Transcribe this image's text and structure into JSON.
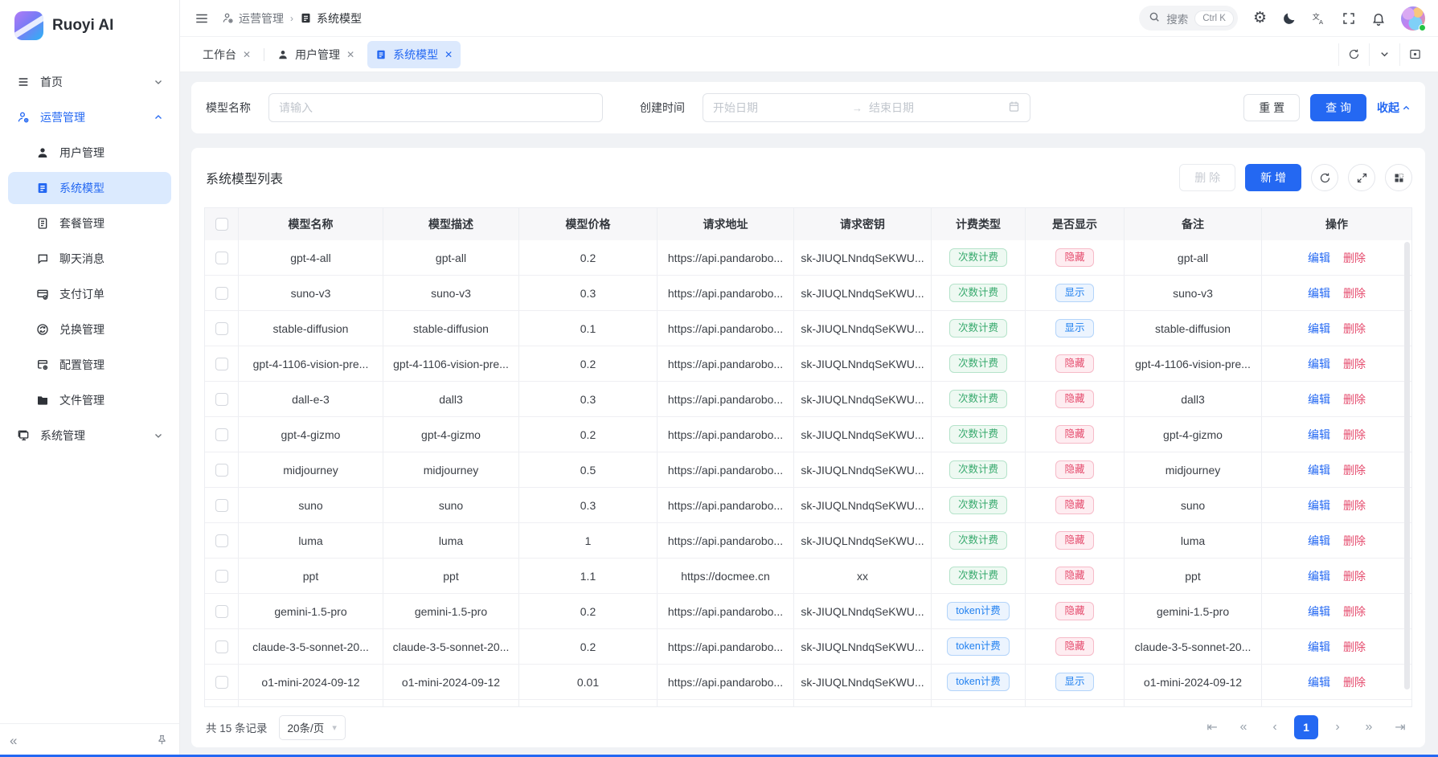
{
  "colors": {
    "primary": "#2468f2",
    "success": "#36a96c",
    "error": "#e54c6e",
    "info": "#2080f0"
  },
  "brand": {
    "name": "Ruoyi AI"
  },
  "sidebar": {
    "items": [
      {
        "id": "home",
        "label": "首页",
        "type": "top",
        "icon": "menu-lines-icon",
        "chevron": "down"
      },
      {
        "id": "operations",
        "label": "运营管理",
        "type": "top",
        "icon": "operations-icon",
        "chevron": "up",
        "active": true
      },
      {
        "id": "users",
        "label": "用户管理",
        "type": "sub",
        "icon": "user-icon"
      },
      {
        "id": "models",
        "label": "系统模型",
        "type": "sub",
        "icon": "model-icon",
        "selected": true
      },
      {
        "id": "packages",
        "label": "套餐管理",
        "type": "sub",
        "icon": "package-icon"
      },
      {
        "id": "chat",
        "label": "聊天消息",
        "type": "sub",
        "icon": "chat-icon"
      },
      {
        "id": "payment",
        "label": "支付订单",
        "type": "sub",
        "icon": "payment-icon"
      },
      {
        "id": "redeem",
        "label": "兑换管理",
        "type": "sub",
        "icon": "redeem-icon"
      },
      {
        "id": "config",
        "label": "配置管理",
        "type": "sub",
        "icon": "config-icon"
      },
      {
        "id": "files",
        "label": "文件管理",
        "type": "sub",
        "icon": "folder-icon"
      },
      {
        "id": "system",
        "label": "系统管理",
        "type": "top",
        "icon": "system-icon",
        "chevron": "down"
      }
    ]
  },
  "header": {
    "breadcrumb": {
      "parent": "运营管理",
      "current": "系统模型"
    },
    "search": {
      "placeholder": "搜索",
      "shortcut": "Ctrl K"
    }
  },
  "tabs": [
    {
      "id": "workbench",
      "label": "工作台",
      "closable": true
    },
    {
      "id": "users",
      "label": "用户管理",
      "icon": "user-icon",
      "closable": true
    },
    {
      "id": "models",
      "label": "系统模型",
      "icon": "model-icon",
      "closable": true,
      "active": true
    }
  ],
  "filter": {
    "model_name_label": "模型名称",
    "model_name_placeholder": "请输入",
    "create_time_label": "创建时间",
    "date_start_placeholder": "开始日期",
    "date_end_placeholder": "结束日期",
    "reset_label": "重 置",
    "search_label": "查 询",
    "collapse_label": "收起"
  },
  "table_card": {
    "title": "系统模型列表",
    "delete_label": "删 除",
    "add_label": "新 增"
  },
  "table": {
    "columns": [
      "模型名称",
      "模型描述",
      "模型价格",
      "请求地址",
      "请求密钥",
      "计费类型",
      "是否显示",
      "备注",
      "操作"
    ],
    "action_labels": {
      "edit": "编辑",
      "delete": "删除"
    },
    "rows": [
      {
        "name": "gpt-4-all",
        "desc": "gpt-all",
        "price": "0.2",
        "url": "https://api.pandarobo...",
        "key": "sk-JIUQLNndqSeKWU...",
        "billing": "次数计费",
        "billing_type": "count",
        "visible": "隐藏",
        "visible_type": "hidden",
        "remark": "gpt-all"
      },
      {
        "name": "suno-v3",
        "desc": "suno-v3",
        "price": "0.3",
        "url": "https://api.pandarobo...",
        "key": "sk-JIUQLNndqSeKWU...",
        "billing": "次数计费",
        "billing_type": "count",
        "visible": "显示",
        "visible_type": "shown",
        "remark": "suno-v3"
      },
      {
        "name": "stable-diffusion",
        "desc": "stable-diffusion",
        "price": "0.1",
        "url": "https://api.pandarobo...",
        "key": "sk-JIUQLNndqSeKWU...",
        "billing": "次数计费",
        "billing_type": "count",
        "visible": "显示",
        "visible_type": "shown",
        "remark": "stable-diffusion"
      },
      {
        "name": "gpt-4-1106-vision-pre...",
        "desc": "gpt-4-1106-vision-pre...",
        "price": "0.2",
        "url": "https://api.pandarobo...",
        "key": "sk-JIUQLNndqSeKWU...",
        "billing": "次数计费",
        "billing_type": "count",
        "visible": "隐藏",
        "visible_type": "hidden",
        "remark": "gpt-4-1106-vision-pre..."
      },
      {
        "name": "dall-e-3",
        "desc": "dall3",
        "price": "0.3",
        "url": "https://api.pandarobo...",
        "key": "sk-JIUQLNndqSeKWU...",
        "billing": "次数计费",
        "billing_type": "count",
        "visible": "隐藏",
        "visible_type": "hidden",
        "remark": "dall3"
      },
      {
        "name": "gpt-4-gizmo",
        "desc": "gpt-4-gizmo",
        "price": "0.2",
        "url": "https://api.pandarobo...",
        "key": "sk-JIUQLNndqSeKWU...",
        "billing": "次数计费",
        "billing_type": "count",
        "visible": "隐藏",
        "visible_type": "hidden",
        "remark": "gpt-4-gizmo"
      },
      {
        "name": "midjourney",
        "desc": "midjourney",
        "price": "0.5",
        "url": "https://api.pandarobo...",
        "key": "sk-JIUQLNndqSeKWU...",
        "billing": "次数计费",
        "billing_type": "count",
        "visible": "隐藏",
        "visible_type": "hidden",
        "remark": "midjourney"
      },
      {
        "name": "suno",
        "desc": "suno",
        "price": "0.3",
        "url": "https://api.pandarobo...",
        "key": "sk-JIUQLNndqSeKWU...",
        "billing": "次数计费",
        "billing_type": "count",
        "visible": "隐藏",
        "visible_type": "hidden",
        "remark": "suno"
      },
      {
        "name": "luma",
        "desc": "luma",
        "price": "1",
        "url": "https://api.pandarobo...",
        "key": "sk-JIUQLNndqSeKWU...",
        "billing": "次数计费",
        "billing_type": "count",
        "visible": "隐藏",
        "visible_type": "hidden",
        "remark": "luma"
      },
      {
        "name": "ppt",
        "desc": "ppt",
        "price": "1.1",
        "url": "https://docmee.cn",
        "key": "xx",
        "billing": "次数计费",
        "billing_type": "count",
        "visible": "隐藏",
        "visible_type": "hidden",
        "remark": "ppt"
      },
      {
        "name": "gemini-1.5-pro",
        "desc": "gemini-1.5-pro",
        "price": "0.2",
        "url": "https://api.pandarobo...",
        "key": "sk-JIUQLNndqSeKWU...",
        "billing": "token计费",
        "billing_type": "token",
        "visible": "隐藏",
        "visible_type": "hidden",
        "remark": "gemini-1.5-pro"
      },
      {
        "name": "claude-3-5-sonnet-20...",
        "desc": "claude-3-5-sonnet-20...",
        "price": "0.2",
        "url": "https://api.pandarobo...",
        "key": "sk-JIUQLNndqSeKWU...",
        "billing": "token计费",
        "billing_type": "token",
        "visible": "隐藏",
        "visible_type": "hidden",
        "remark": "claude-3-5-sonnet-20..."
      },
      {
        "name": "o1-mini-2024-09-12",
        "desc": "o1-mini-2024-09-12",
        "price": "0.01",
        "url": "https://api.pandarobo...",
        "key": "sk-JIUQLNndqSeKWU...",
        "billing": "token计费",
        "billing_type": "token",
        "visible": "显示",
        "visible_type": "shown",
        "remark": "o1-mini-2024-09-12"
      },
      {
        "partial": true
      }
    ]
  },
  "pagination": {
    "total_text": "共 15 条记录",
    "page_size": "20条/页",
    "current_page": "1"
  }
}
